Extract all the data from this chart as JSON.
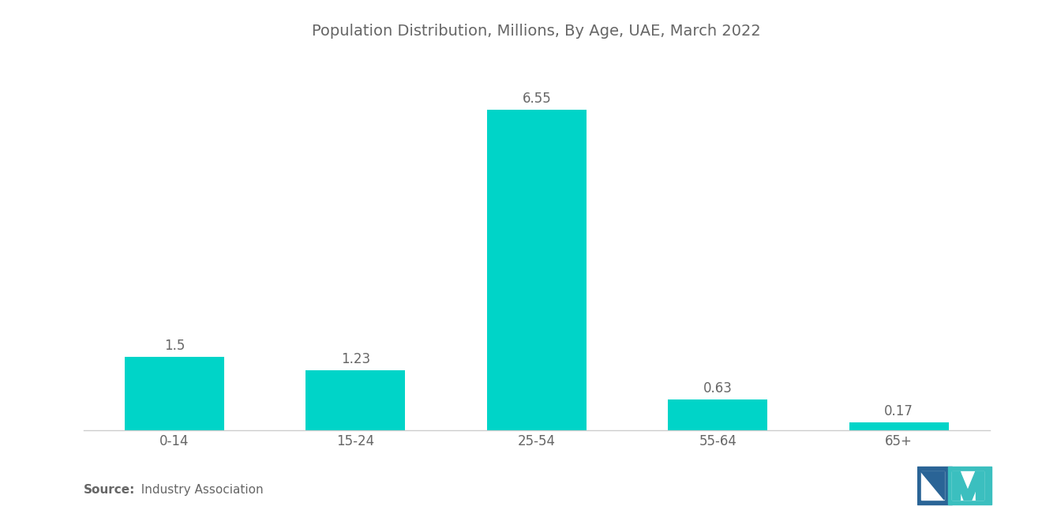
{
  "title": "Population Distribution, Millions, By Age, UAE, March 2022",
  "categories": [
    "0-14",
    "15-24",
    "25-54",
    "55-64",
    "65+"
  ],
  "values": [
    1.5,
    1.23,
    6.55,
    0.63,
    0.17
  ],
  "bar_color": "#00D4C8",
  "background_color": "#ffffff",
  "title_color": "#666666",
  "label_color": "#666666",
  "source_bold": "Source:",
  "source_normal": "  Industry Association",
  "title_fontsize": 14,
  "label_fontsize": 12,
  "tick_fontsize": 12,
  "source_fontsize": 11,
  "ylim": [
    0,
    7.5
  ],
  "bar_width": 0.55,
  "logo_left_color": "#2A6496",
  "logo_right_color": "#3BBFBF"
}
